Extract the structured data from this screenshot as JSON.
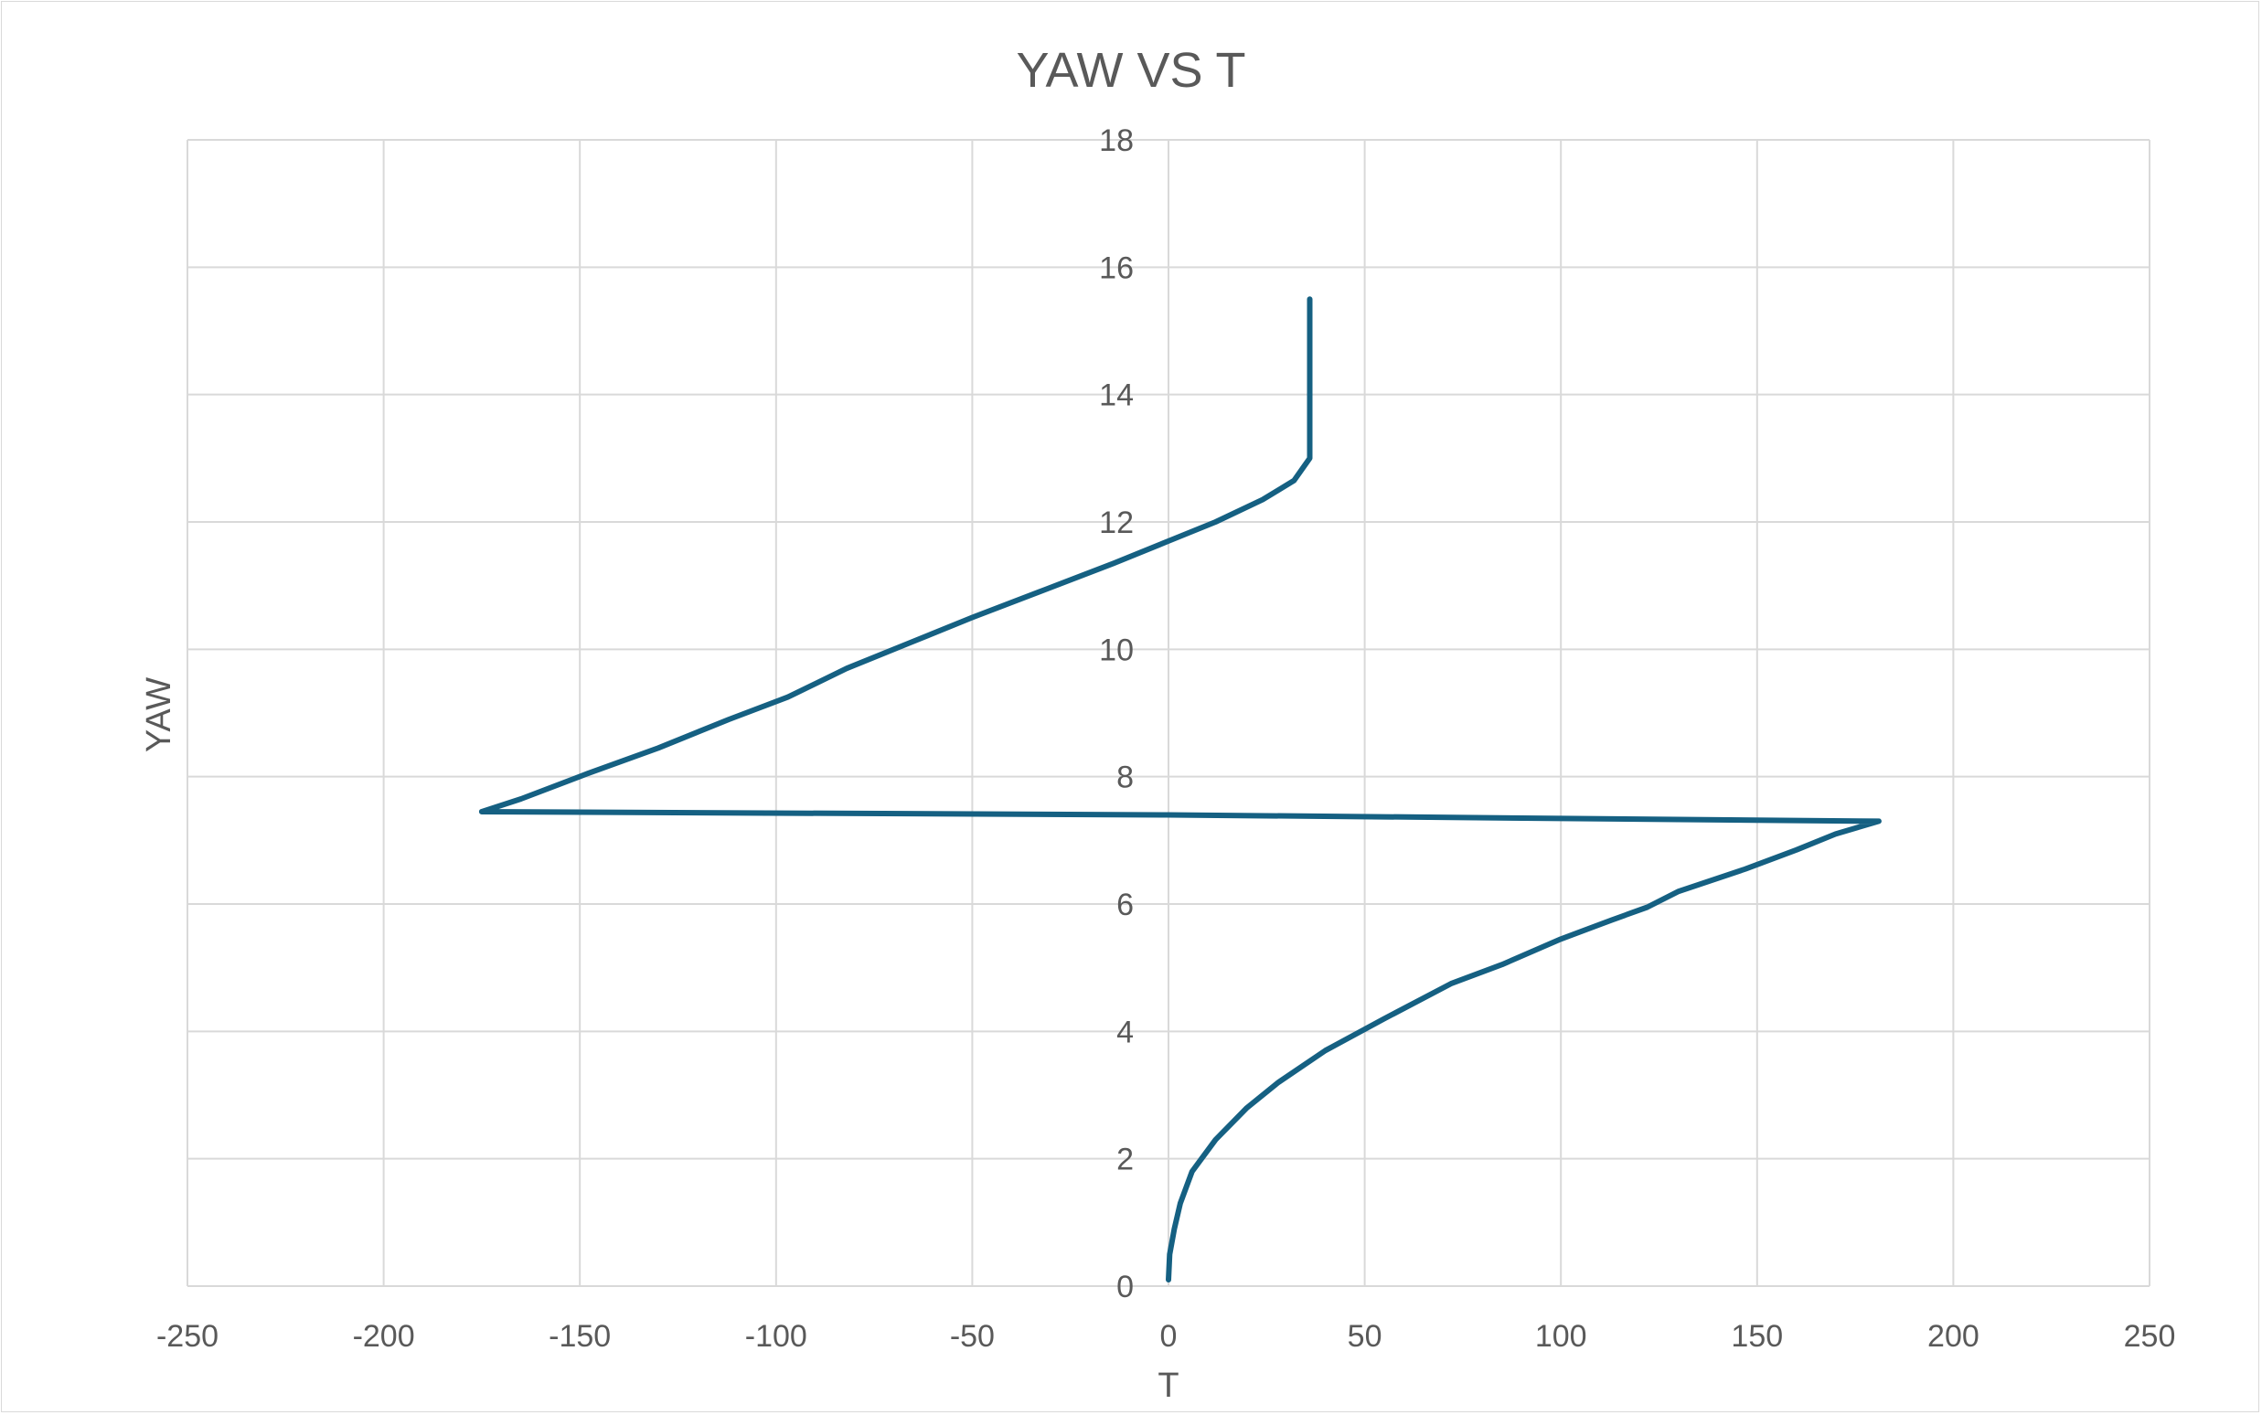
{
  "chart_data": {
    "type": "scatter",
    "title": "YAW VS T",
    "xlabel": "T",
    "ylabel": "YAW",
    "xlim": [
      -250,
      250
    ],
    "ylim": [
      0,
      18
    ],
    "x_ticks": [
      -250,
      -200,
      -150,
      -100,
      -50,
      0,
      50,
      100,
      150,
      200,
      250
    ],
    "y_ticks": [
      0,
      2,
      4,
      6,
      8,
      10,
      12,
      14,
      16,
      18
    ],
    "x_tick_labels": [
      "-250",
      "-200",
      "-150",
      "-100",
      "-50",
      "0",
      "50",
      "100",
      "150",
      "200",
      "250"
    ],
    "y_tick_labels": [
      "0",
      "2",
      "4",
      "6",
      "8",
      "10",
      "12",
      "14",
      "16",
      "18"
    ],
    "grid": true,
    "color": "#156082",
    "series": [
      {
        "points": [
          [
            0,
            0.1
          ],
          [
            0.3,
            0.5
          ],
          [
            1.5,
            0.9
          ],
          [
            3,
            1.3
          ],
          [
            6,
            1.8
          ],
          [
            12,
            2.3
          ],
          [
            20,
            2.8
          ],
          [
            28,
            3.2
          ],
          [
            40,
            3.7
          ],
          [
            55,
            4.2
          ],
          [
            72,
            4.75
          ],
          [
            85,
            5.05
          ],
          [
            100,
            5.45
          ],
          [
            113,
            5.75
          ],
          [
            122,
            5.95
          ],
          [
            130,
            6.2
          ],
          [
            147,
            6.55
          ],
          [
            160,
            6.85
          ],
          [
            170,
            7.1
          ],
          [
            181,
            7.3
          ],
          [
            0,
            7.4
          ],
          [
            -175,
            7.45
          ],
          [
            -165,
            7.65
          ],
          [
            -148,
            8.05
          ],
          [
            -130,
            8.45
          ],
          [
            -112,
            8.9
          ],
          [
            -97,
            9.25
          ],
          [
            -82,
            9.7
          ],
          [
            -66,
            10.1
          ],
          [
            -50,
            10.5
          ],
          [
            -33,
            10.9
          ],
          [
            -14,
            11.35
          ],
          [
            0,
            11.7
          ],
          [
            12,
            12.0
          ],
          [
            24,
            12.35
          ],
          [
            32,
            12.65
          ],
          [
            36,
            13.0
          ],
          [
            36,
            14.0
          ],
          [
            36,
            15.5
          ]
        ]
      }
    ]
  }
}
